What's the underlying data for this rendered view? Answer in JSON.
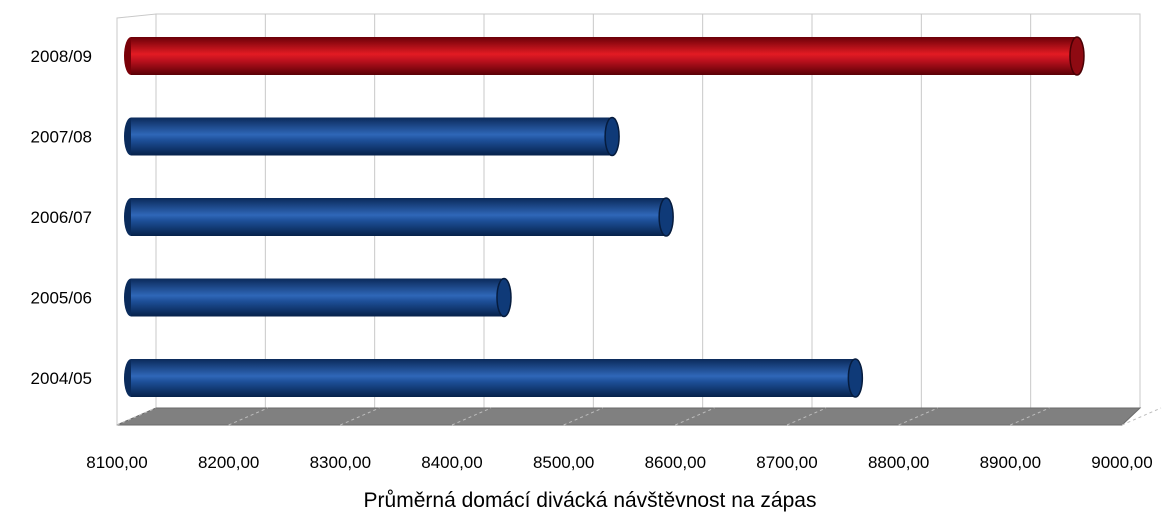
{
  "chart_data": {
    "type": "bar",
    "orientation": "horizontal",
    "style": "3d-cylinder",
    "categories": [
      "2004/05",
      "2005/06",
      "2006/07",
      "2007/08",
      "2008/09"
    ],
    "values": [
      8770,
      8445,
      8595,
      8545,
      8975
    ],
    "bar_colors": [
      "#1f4f9a",
      "#1f4f9a",
      "#1f4f9a",
      "#1f4f9a",
      "#c1121f"
    ],
    "xlabel": "Průměrná domácí divácká návštěvnost na zápas",
    "ylabel": "",
    "title": "",
    "xlim": [
      8100,
      9000
    ],
    "x_ticks": [
      "8100,00",
      "8200,00",
      "8300,00",
      "8400,00",
      "8500,00",
      "8600,00",
      "8700,00",
      "8800,00",
      "8900,00",
      "9000,00"
    ],
    "grid": "vertical",
    "legend": "none",
    "floor_color": "#808080"
  }
}
